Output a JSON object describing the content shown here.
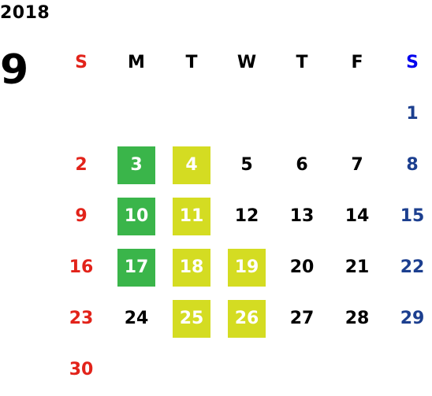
{
  "year": "2018",
  "month": "9",
  "colors": {
    "sunday": "#e2231a",
    "saturday_header": "#0000ee",
    "saturday": "#1c3f8f",
    "highlight_green": "#3ab54a",
    "highlight_lime": "#d4dc22"
  },
  "weekdays": [
    {
      "label": "S",
      "kind": "sun"
    },
    {
      "label": "M",
      "kind": "weekday"
    },
    {
      "label": "T",
      "kind": "weekday"
    },
    {
      "label": "W",
      "kind": "weekday"
    },
    {
      "label": "T",
      "kind": "weekday"
    },
    {
      "label": "F",
      "kind": "weekday"
    },
    {
      "label": "S",
      "kind": "sat"
    }
  ],
  "weeks": [
    [
      null,
      null,
      null,
      null,
      null,
      null,
      {
        "day": "1"
      }
    ],
    [
      {
        "day": "2"
      },
      {
        "day": "3",
        "highlight": "green"
      },
      {
        "day": "4",
        "highlight": "lime"
      },
      {
        "day": "5"
      },
      {
        "day": "6"
      },
      {
        "day": "7"
      },
      {
        "day": "8"
      }
    ],
    [
      {
        "day": "9"
      },
      {
        "day": "10",
        "highlight": "green"
      },
      {
        "day": "11",
        "highlight": "lime"
      },
      {
        "day": "12"
      },
      {
        "day": "13"
      },
      {
        "day": "14"
      },
      {
        "day": "15"
      }
    ],
    [
      {
        "day": "16"
      },
      {
        "day": "17",
        "highlight": "green"
      },
      {
        "day": "18",
        "highlight": "lime"
      },
      {
        "day": "19",
        "highlight": "lime"
      },
      {
        "day": "20"
      },
      {
        "day": "21"
      },
      {
        "day": "22"
      }
    ],
    [
      {
        "day": "23"
      },
      {
        "day": "24"
      },
      {
        "day": "25",
        "highlight": "lime"
      },
      {
        "day": "26",
        "highlight": "lime"
      },
      {
        "day": "27"
      },
      {
        "day": "28"
      },
      {
        "day": "29"
      }
    ],
    [
      {
        "day": "30"
      },
      null,
      null,
      null,
      null,
      null,
      null
    ]
  ]
}
